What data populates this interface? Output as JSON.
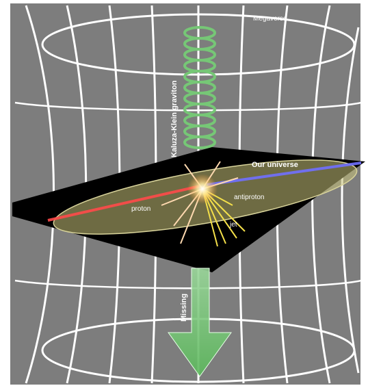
{
  "labels": {
    "megaverse": "Megaverse",
    "our_universe": "Our universe",
    "proton": "proton",
    "antiproton": "antiproton",
    "jet": "jet",
    "kaluza_klein_graviton": "Kaluza-Klein graviton",
    "missing": "Missing"
  },
  "colors": {
    "background": "#7d7d7d",
    "grid_lines": "#ffffff",
    "brane": "#000000",
    "universe_ellipse": "#c8c27a",
    "proton_beam": "#ff4a4a",
    "antiproton_beam": "#7070ff",
    "jet": "#f4e04a",
    "graviton": "#76c776"
  }
}
